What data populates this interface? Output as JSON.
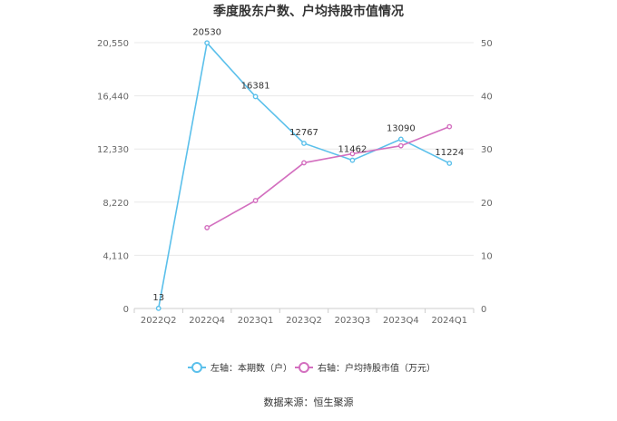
{
  "chart_data": {
    "type": "line",
    "title": "季度股东户数、户均持股市值情况",
    "categories": [
      "2022Q2",
      "2022Q4",
      "2023Q1",
      "2023Q2",
      "2023Q3",
      "2023Q4",
      "2024Q1"
    ],
    "left_axis": {
      "ylim": [
        0,
        20550
      ],
      "ticks": [
        "0",
        "4,110",
        "8,220",
        "12,330",
        "16,440",
        "20,550"
      ]
    },
    "right_axis": {
      "ylim": [
        0,
        50
      ],
      "ticks": [
        "0",
        "10",
        "20",
        "30",
        "40",
        "50"
      ]
    },
    "series": [
      {
        "name": "左轴：本期数（户）",
        "axis": "left",
        "color": "#5bc0eb",
        "values": [
          13,
          20530,
          16381,
          12767,
          11462,
          13090,
          11224
        ],
        "labels": [
          "13",
          "20530",
          "16381",
          "12767",
          "11462",
          "13090",
          "11224"
        ]
      },
      {
        "name": "右轴：户均持股市值（万元）",
        "axis": "right",
        "color": "#d36fbf",
        "values": [
          null,
          15.2,
          20.3,
          27.4,
          29.1,
          30.6,
          34.2
        ]
      }
    ],
    "legend_position": "bottom",
    "grid": true
  },
  "source": "数据来源：恒生聚源"
}
